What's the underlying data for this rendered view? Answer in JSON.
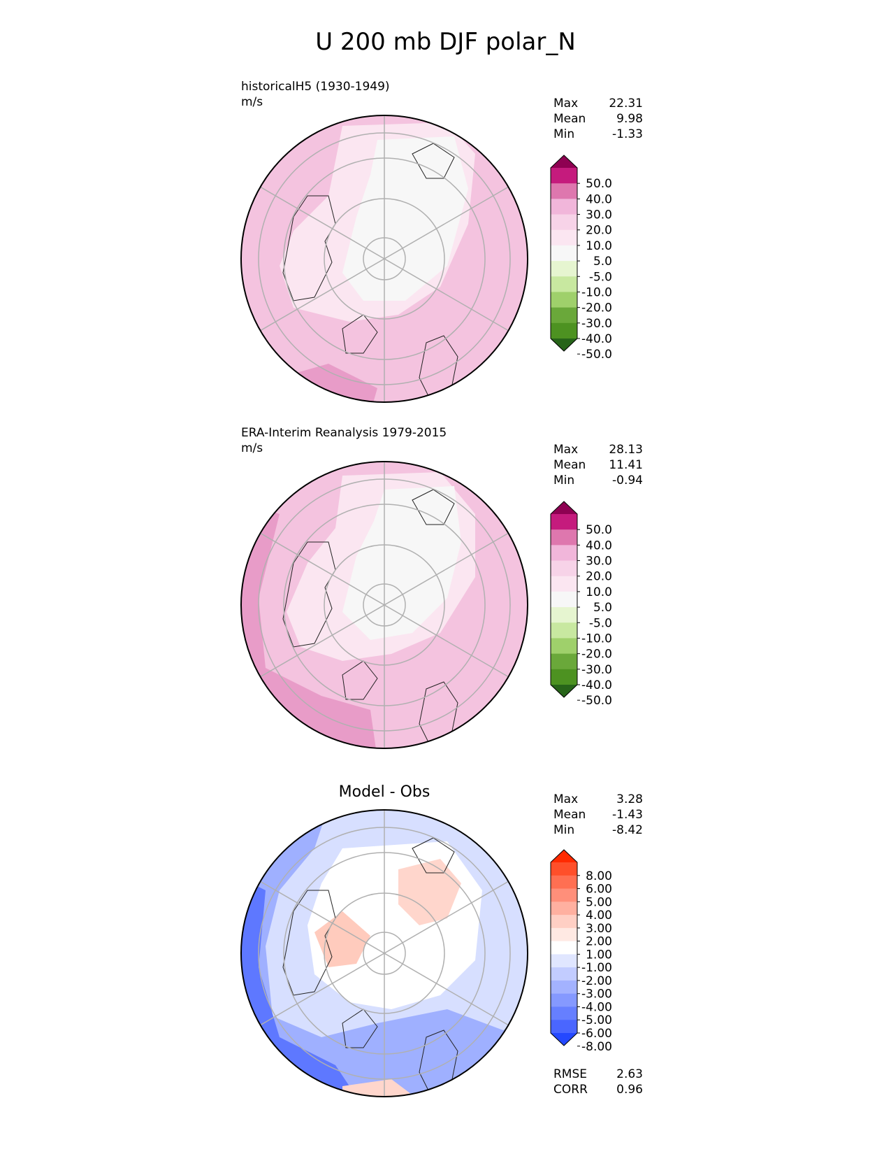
{
  "title": "U 200 mb DJF polar_N",
  "panels": [
    {
      "label": "historicalH5 (1930-1949)",
      "units": "m/s",
      "stats": [
        {
          "name": "Max",
          "value": "22.31"
        },
        {
          "name": "Mean",
          "value": "9.98"
        },
        {
          "name": "Min",
          "value": "-1.33"
        }
      ],
      "colorbar": {
        "labels": [
          "50.0",
          "40.0",
          "30.0",
          "20.0",
          "10.0",
          "5.0",
          "-5.0",
          "-10.0",
          "-20.0",
          "-30.0",
          "-40.0",
          "-50.0"
        ],
        "colors": [
          "#8e0152",
          "#c51b7d",
          "#de77ae",
          "#f1b6da",
          "#f7d3e8",
          "#fbe6f1",
          "#f7f7f7",
          "#e6f5d0",
          "#c8e8a0",
          "#9fd06b",
          "#6aa83a",
          "#4d9221",
          "#276419"
        ]
      }
    },
    {
      "label": "ERA-Interim Reanalysis 1979-2015",
      "units": "m/s",
      "stats": [
        {
          "name": "Max",
          "value": "28.13"
        },
        {
          "name": "Mean",
          "value": "11.41"
        },
        {
          "name": "Min",
          "value": "-0.94"
        }
      ],
      "colorbar": {
        "labels": [
          "50.0",
          "40.0",
          "30.0",
          "20.0",
          "10.0",
          "5.0",
          "-5.0",
          "-10.0",
          "-20.0",
          "-30.0",
          "-40.0",
          "-50.0"
        ],
        "colors": [
          "#8e0152",
          "#c51b7d",
          "#de77ae",
          "#f1b6da",
          "#f7d3e8",
          "#fbe6f1",
          "#f7f7f7",
          "#e6f5d0",
          "#c8e8a0",
          "#9fd06b",
          "#6aa83a",
          "#4d9221",
          "#276419"
        ]
      }
    },
    {
      "label": "Model - Obs",
      "stats": [
        {
          "name": "Max",
          "value": "3.28"
        },
        {
          "name": "Mean",
          "value": "-1.43"
        },
        {
          "name": "Min",
          "value": "-8.42"
        }
      ],
      "colorbar": {
        "labels": [
          "8.00",
          "6.00",
          "5.00",
          "4.00",
          "3.00",
          "2.00",
          "1.00",
          "-1.00",
          "-2.00",
          "-3.00",
          "-4.00",
          "-5.00",
          "-6.00",
          "-8.00"
        ],
        "colors": [
          "#ff2a00",
          "#ff4f2a",
          "#ff6f52",
          "#ff8f7a",
          "#ffb0a0",
          "#ffcfc4",
          "#ffe9e3",
          "#ffffff",
          "#e0e6ff",
          "#c2ccff",
          "#a3b2ff",
          "#8599ff",
          "#667fff",
          "#4a66ff",
          "#2448ff"
        ]
      },
      "extra_stats": [
        {
          "name": "RMSE",
          "value": "2.63"
        },
        {
          "name": "CORR",
          "value": "0.96"
        }
      ]
    }
  ]
}
